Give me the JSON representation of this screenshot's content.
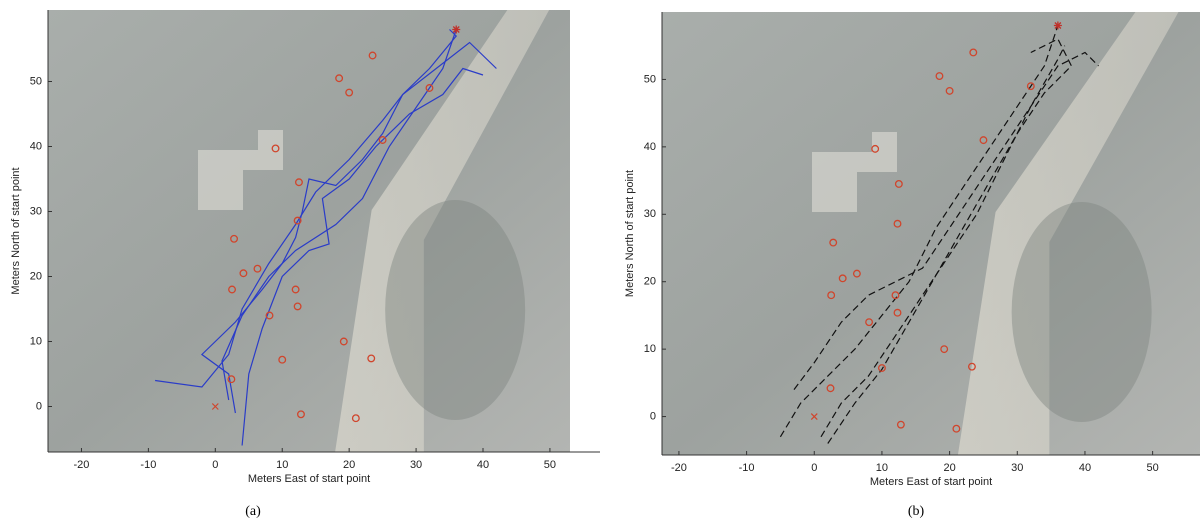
{
  "chart_data": [
    {
      "type": "line",
      "caption": "(a)",
      "x_label": "Meters East of start point",
      "y_label": "Meters North of start point",
      "xlim": [
        -25,
        53
      ],
      "ylim": [
        -7,
        61
      ],
      "xticks": [
        -20,
        -10,
        0,
        10,
        20,
        30,
        40,
        50
      ],
      "yticks": [
        0,
        10,
        20,
        30,
        40,
        50
      ],
      "line_style": "solid",
      "landmarks": {
        "color": "#d0452c",
        "x": [
          23.5,
          18.5,
          20,
          32,
          25,
          9,
          12.5,
          12.3,
          2.8,
          4.2,
          6.3,
          2.5,
          12,
          12.3,
          8.1,
          10,
          19.2,
          23.3,
          2.4,
          12.8,
          21
        ],
        "y": [
          54,
          50.5,
          48.3,
          49,
          41,
          39.7,
          34.5,
          28.6,
          25.8,
          20.5,
          21.2,
          18,
          18,
          15.4,
          14,
          7.2,
          10,
          7.4,
          4.2,
          -1.2,
          -1.8
        ]
      },
      "start": {
        "x": 0,
        "y": 0,
        "color": "#d0452c"
      },
      "goal": {
        "x": 36,
        "y": 58,
        "color": "#c0302a"
      },
      "series": [
        {
          "color": "#2a3cc8",
          "x": [
            -9,
            -2,
            2,
            4,
            8,
            12,
            15,
            20,
            25,
            28,
            33,
            38,
            42
          ],
          "y": [
            4,
            3,
            8,
            15,
            22,
            28,
            33,
            38,
            44,
            48,
            52,
            56,
            52
          ]
        },
        {
          "color": "#2a3cc8",
          "x": [
            3,
            2,
            -2,
            3,
            7,
            10,
            12,
            13,
            14,
            18,
            22,
            25,
            28,
            32,
            36,
            35
          ],
          "y": [
            -1,
            5,
            8,
            13,
            18,
            22,
            26,
            30,
            35,
            34,
            38,
            42,
            48,
            52,
            57,
            58
          ]
        },
        {
          "color": "#2a3cc8",
          "x": [
            4,
            5,
            7,
            10,
            14,
            17,
            16,
            20,
            24,
            29,
            34,
            37,
            40
          ],
          "y": [
            -6,
            5,
            12,
            20,
            24,
            25,
            32,
            35,
            40,
            45,
            48,
            52,
            51
          ]
        },
        {
          "color": "#2a3cc8",
          "x": [
            2,
            1,
            4,
            8,
            12,
            18,
            22,
            26,
            30,
            34,
            36
          ],
          "y": [
            1,
            7,
            14,
            20,
            24,
            28,
            32,
            40,
            46,
            52,
            58
          ]
        }
      ]
    },
    {
      "type": "line",
      "caption": "(b)",
      "x_label": "Meters East of start point",
      "y_label": "Meters North of start point",
      "xlim": [
        -22.5,
        57
      ],
      "ylim": [
        -5.7,
        60
      ],
      "xticks": [
        -20,
        -10,
        0,
        10,
        20,
        30,
        40,
        50
      ],
      "yticks": [
        0,
        10,
        20,
        30,
        40,
        50
      ],
      "line_style": "dashed",
      "landmarks": {
        "color": "#d0452c",
        "x": [
          23.5,
          18.5,
          20,
          32,
          25,
          9,
          12.5,
          12.3,
          2.8,
          4.2,
          6.3,
          2.5,
          12,
          12.3,
          8.1,
          10,
          19.2,
          23.3,
          2.4,
          12.8,
          21
        ],
        "y": [
          54,
          50.5,
          48.3,
          49,
          41,
          39.7,
          34.5,
          28.6,
          25.8,
          20.5,
          21.2,
          18,
          18,
          15.4,
          14,
          7.2,
          10,
          7.4,
          4.2,
          -1.2,
          -1.8
        ]
      },
      "start": {
        "x": 0,
        "y": 0,
        "color": "#d0452c"
      },
      "goal": {
        "x": 36,
        "y": 58,
        "color": "#c0302a"
      },
      "series": [
        {
          "color": "#111111",
          "x": [
            -5,
            -2,
            2,
            6,
            10,
            14,
            18,
            22,
            26,
            30,
            34,
            36
          ],
          "y": [
            -3,
            2,
            6,
            10,
            15,
            20,
            28,
            34,
            40,
            46,
            52,
            58
          ]
        },
        {
          "color": "#111111",
          "x": [
            -3,
            0,
            4,
            8,
            12,
            16,
            20,
            24,
            28,
            32,
            36,
            40,
            42
          ],
          "y": [
            4,
            8,
            14,
            18,
            20,
            22,
            28,
            34,
            40,
            46,
            52,
            54,
            52
          ]
        },
        {
          "color": "#111111",
          "x": [
            2,
            6,
            10,
            14,
            18,
            22,
            26,
            30,
            34,
            38,
            36,
            32
          ],
          "y": [
            -4,
            2,
            7,
            14,
            21,
            28,
            35,
            42,
            48,
            52,
            56,
            54
          ]
        },
        {
          "color": "#111111",
          "x": [
            1,
            4,
            8,
            12,
            16,
            20,
            24,
            28,
            32,
            36,
            37
          ],
          "y": [
            -3,
            2,
            6,
            12,
            18,
            24,
            30,
            38,
            46,
            53,
            55
          ]
        }
      ]
    }
  ]
}
